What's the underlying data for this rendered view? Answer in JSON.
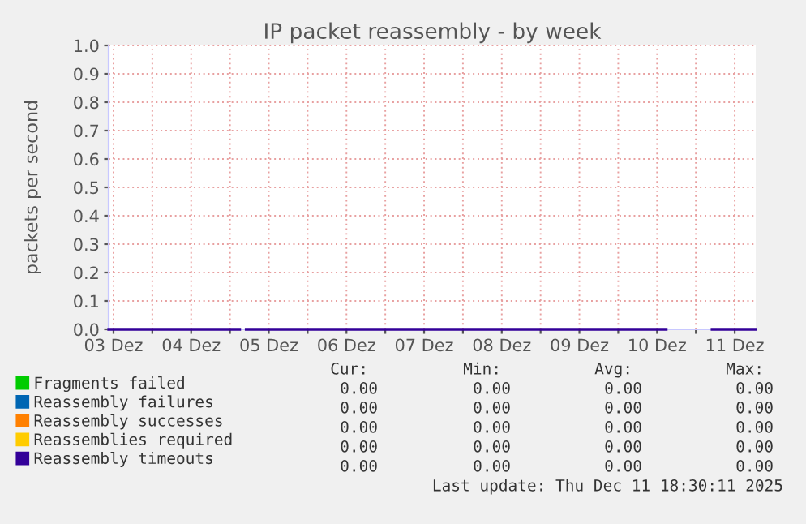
{
  "chart_data": {
    "type": "line",
    "title": "IP packet reassembly - by week",
    "ylabel": "packets per second",
    "x": [
      "2025-12-03T10:30",
      "2025-12-05T03:00",
      "2025-12-05T04:00",
      "2025-12-05T05:00",
      "2025-12-10T14:50",
      "2025-12-10T16:00",
      "2025-12-11T05:00",
      "2025-12-11T18:30"
    ],
    "series": [
      {
        "name": "Fragments failed",
        "color": "#00cc00",
        "values": [
          null,
          null,
          null,
          null,
          null,
          null,
          null,
          null
        ]
      },
      {
        "name": "Reassembly failures",
        "color": "#0066b3",
        "values": [
          null,
          null,
          null,
          null,
          null,
          null,
          null,
          null
        ]
      },
      {
        "name": "Reassembly successes",
        "color": "#ff8000",
        "values": [
          null,
          null,
          null,
          null,
          null,
          null,
          null,
          null
        ]
      },
      {
        "name": "Reassemblies required",
        "color": "#ffcc00",
        "values": [
          null,
          null,
          null,
          null,
          null,
          null,
          null,
          null
        ]
      },
      {
        "name": "Reassembly timeouts",
        "color": "#330099",
        "values": [
          0,
          0,
          null,
          0,
          0,
          null,
          0,
          0
        ]
      }
    ],
    "xlim": [
      "2025-12-03T10:30",
      "2025-12-11T18:30"
    ],
    "xticks": [
      {
        "value": "2025-12-03T12:00",
        "label": "03 Dez"
      },
      {
        "value": "2025-12-04T00:00",
        "label": null
      },
      {
        "value": "2025-12-04T12:00",
        "label": "04 Dez"
      },
      {
        "value": "2025-12-05T00:00",
        "label": null
      },
      {
        "value": "2025-12-05T12:00",
        "label": "05 Dez"
      },
      {
        "value": "2025-12-06T00:00",
        "label": null
      },
      {
        "value": "2025-12-06T12:00",
        "label": "06 Dez"
      },
      {
        "value": "2025-12-07T00:00",
        "label": null
      },
      {
        "value": "2025-12-07T12:00",
        "label": "07 Dez"
      },
      {
        "value": "2025-12-08T00:00",
        "label": null
      },
      {
        "value": "2025-12-08T12:00",
        "label": "08 Dez"
      },
      {
        "value": "2025-12-09T00:00",
        "label": null
      },
      {
        "value": "2025-12-09T12:00",
        "label": "09 Dez"
      },
      {
        "value": "2025-12-10T00:00",
        "label": null
      },
      {
        "value": "2025-12-10T12:00",
        "label": "10 Dez"
      },
      {
        "value": "2025-12-11T00:00",
        "label": null
      },
      {
        "value": "2025-12-11T12:00",
        "label": "11 Dez"
      }
    ],
    "ylim": [
      0,
      1
    ],
    "yticks": [
      {
        "value": 0,
        "label": "0.0"
      },
      {
        "value": 0.1,
        "label": "0.1"
      },
      {
        "value": 0.2,
        "label": "0.2"
      },
      {
        "value": 0.3,
        "label": "0.3"
      },
      {
        "value": 0.4,
        "label": "0.4"
      },
      {
        "value": 0.5,
        "label": "0.5"
      },
      {
        "value": 0.6,
        "label": "0.6"
      },
      {
        "value": 0.7,
        "label": "0.7"
      },
      {
        "value": 0.8,
        "label": "0.8"
      },
      {
        "value": 0.9,
        "label": "0.9"
      },
      {
        "value": 1,
        "label": "1.0"
      }
    ],
    "grid": true,
    "legend": "bottom left",
    "marker": "none",
    "line_style": "solid",
    "annotations": [
      "Cur:",
      "Min:",
      "Avg:",
      "Max:",
      "0.00",
      "0.00",
      "0.00",
      "0.00",
      "0.00",
      "0.00",
      "0.00",
      "0.00",
      "0.00",
      "0.00",
      "0.00",
      "0.00",
      "0.00",
      "0.00",
      "0.00",
      "0.00",
      "0.00",
      "0.00",
      "0.00",
      "0.00",
      "Last update: Thu Dec 11 18:30:11 2025"
    ]
  }
}
